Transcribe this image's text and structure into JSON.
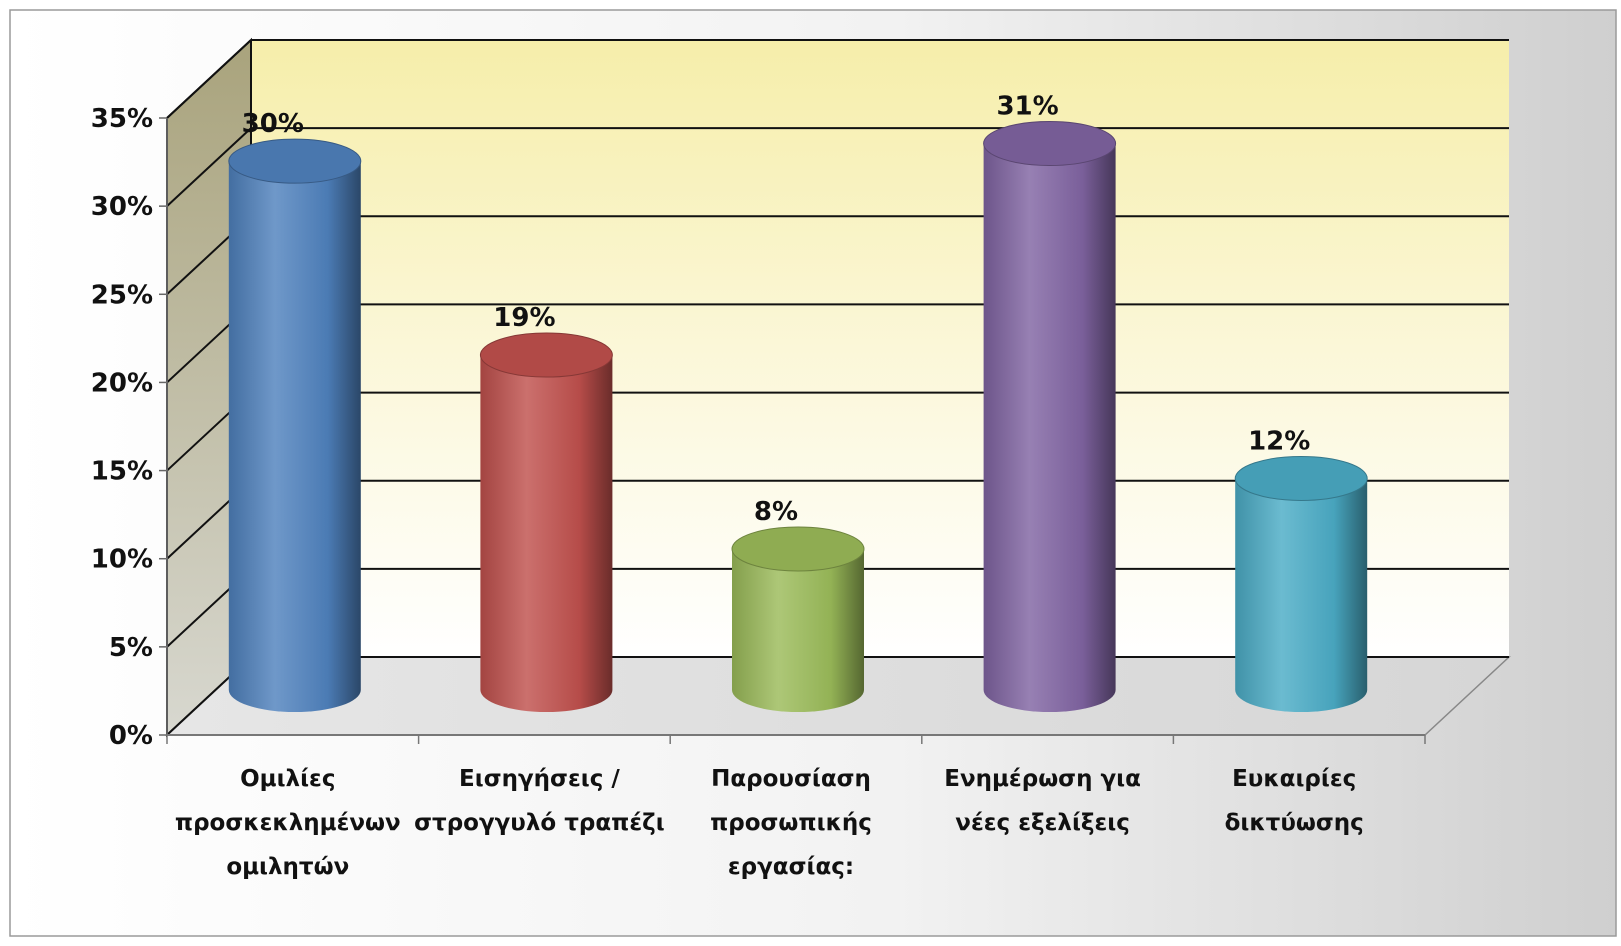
{
  "chart_data": {
    "type": "bar",
    "style": "3d-cylinder",
    "title": "",
    "xlabel": "",
    "ylabel": "",
    "ylim": [
      0,
      35
    ],
    "y_ticks": [
      "0%",
      "5%",
      "10%",
      "15%",
      "20%",
      "25%",
      "30%",
      "35%"
    ],
    "y_tick_values": [
      0,
      5,
      10,
      15,
      20,
      25,
      30,
      35
    ],
    "grid": true,
    "legend": "none",
    "categories": [
      [
        "Ομιλίες",
        "προσκεκλημένων",
        "ομιλητών"
      ],
      [
        "Εισηγήσεις /",
        "στρογγυλό τραπέζι"
      ],
      [
        "Παρουσίαση",
        "προσωπικής",
        "εργασίας:"
      ],
      [
        "Ενημέρωση για",
        "νέες εξελίξεις"
      ],
      [
        "Ευκαιρίες",
        "δικτύωσης"
      ]
    ],
    "values": [
      30,
      19,
      8,
      31,
      12
    ],
    "data_labels": [
      "30%",
      "19%",
      "8%",
      "31%",
      "12%"
    ],
    "colors": [
      "#4f81bd",
      "#c0504d",
      "#9bbb59",
      "#8064a2",
      "#4bacc6"
    ]
  }
}
